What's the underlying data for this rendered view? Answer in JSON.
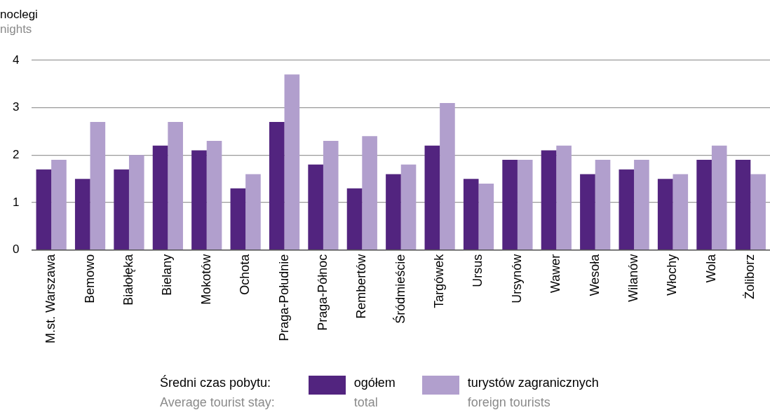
{
  "chart_data": {
    "type": "bar",
    "ylabel": "noclegi\nnights",
    "legend_title": "Średni czas pobytu:\nAverage tourist stay:",
    "categories": [
      "M.st. Warszawa",
      "Bemowo",
      "Białołęka",
      "Bielany",
      "Mokotów",
      "Ochota",
      "Praga-Południe",
      "Praga-Północ",
      "Rembertów",
      "Śródmieście",
      "Targówek",
      "Ursus",
      "Ursynów",
      "Wawer",
      "Wesoła",
      "Wilanów",
      "Włochy",
      "Wola",
      "Żoliborz"
    ],
    "series": [
      {
        "name": "ogółem\ntotal",
        "color": "#52247f",
        "values": [
          1.7,
          1.5,
          1.7,
          2.2,
          2.1,
          1.3,
          2.7,
          1.8,
          1.3,
          1.6,
          2.2,
          1.5,
          1.9,
          2.1,
          1.6,
          1.7,
          1.5,
          1.9,
          1.9
        ]
      },
      {
        "name": "turystów zagranicznych\nforeign tourists",
        "color": "#b19fcd",
        "values": [
          1.9,
          2.7,
          2.0,
          2.7,
          2.3,
          1.6,
          3.7,
          2.3,
          2.4,
          1.8,
          3.1,
          1.4,
          1.9,
          2.2,
          1.9,
          1.9,
          1.6,
          2.2,
          1.6
        ]
      }
    ],
    "ylim": [
      0,
      4
    ],
    "yticks": [
      0,
      1,
      2,
      3,
      4
    ],
    "grid": "y",
    "legend": "bottom"
  }
}
